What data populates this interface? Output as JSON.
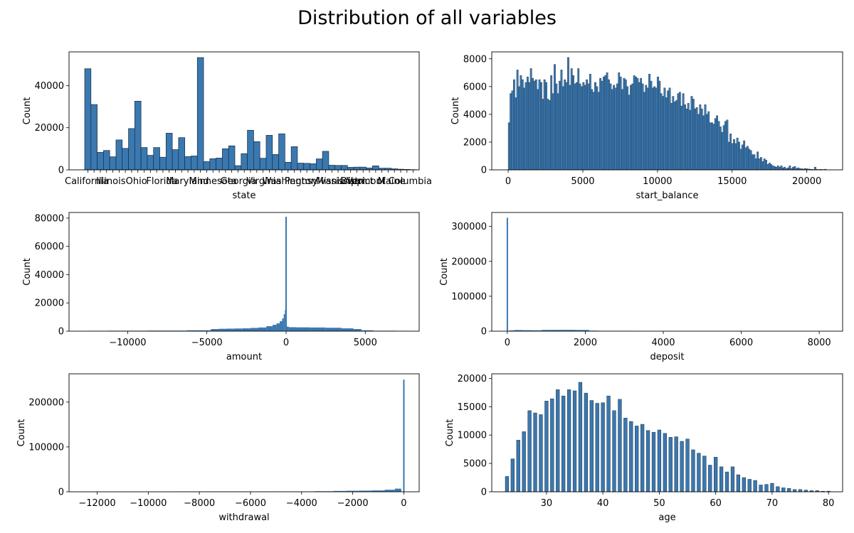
{
  "figure": {
    "title": "Distribution of all variables"
  },
  "chart_data": [
    {
      "type": "histogram",
      "xlabel": "state",
      "ylabel": "Count",
      "x_kind": "categorical",
      "ylim": [
        0,
        56000
      ],
      "yticks": [
        0,
        20000,
        40000
      ],
      "xtick_labels_visible": [
        "California",
        "Illinois",
        "Ohio",
        "Florida",
        "Maryland",
        "Minnesota",
        "Georgia",
        "Virginia",
        "Washington",
        "Pennsylvania",
        "Mississippi",
        "Vermont",
        "Maine",
        "District of Columbia"
      ],
      "values": [
        48000,
        31000,
        8300,
        9200,
        6200,
        14200,
        10200,
        19600,
        32600,
        10600,
        6900,
        10600,
        6000,
        17400,
        9600,
        15300,
        6300,
        6600,
        53300,
        3900,
        5300,
        5600,
        10000,
        11400,
        2000,
        7700,
        18800,
        13400,
        5500,
        16400,
        7300,
        17100,
        3600,
        11000,
        3200,
        3100,
        2900,
        5200,
        8800,
        2200,
        2100,
        2100,
        1200,
        1300,
        1300,
        900,
        1900,
        800,
        800,
        500,
        300,
        200,
        100
      ],
      "grid": false
    },
    {
      "type": "histogram",
      "xlabel": "start_balance",
      "ylabel": "Count",
      "xlim": [
        -1100,
        22400
      ],
      "ylim": [
        0,
        8500
      ],
      "xticks": [
        0,
        5000,
        10000,
        15000,
        20000
      ],
      "yticks": [
        0,
        2000,
        4000,
        6000,
        8000
      ],
      "bin_range": [
        0,
        21300
      ],
      "values": [
        3400,
        5500,
        5700,
        6500,
        5200,
        7200,
        6000,
        6800,
        6500,
        5900,
        6300,
        6700,
        6300,
        7300,
        6600,
        6400,
        6500,
        5800,
        6500,
        6300,
        5100,
        6500,
        6300,
        5100,
        5000,
        6800,
        5500,
        7600,
        6200,
        5500,
        6400,
        7200,
        6000,
        6500,
        6300,
        8100,
        6100,
        7300,
        6800,
        6200,
        6300,
        7300,
        6200,
        6000,
        6300,
        6100,
        6500,
        6200,
        6900,
        5800,
        5600,
        6300,
        6000,
        5600,
        6600,
        6400,
        6700,
        6800,
        7000,
        6500,
        6200,
        5800,
        6100,
        5900,
        6200,
        7000,
        6700,
        5800,
        6600,
        6500,
        6000,
        5400,
        6100,
        6200,
        6800,
        6700,
        6600,
        6300,
        6600,
        6200,
        5600,
        6100,
        5900,
        6900,
        6400,
        5900,
        6000,
        5900,
        6700,
        6400,
        5500,
        5300,
        5900,
        5200,
        5700,
        5900,
        4800,
        5300,
        4900,
        5000,
        5500,
        5600,
        4600,
        5500,
        4700,
        4400,
        4800,
        4300,
        5300,
        5100,
        4400,
        4500,
        4000,
        4700,
        4400,
        3900,
        4700,
        4000,
        4200,
        3400,
        3400,
        3300,
        3700,
        3900,
        3500,
        3100,
        2700,
        3200,
        3500,
        3600,
        2000,
        2600,
        1900,
        2200,
        1900,
        2300,
        2000,
        1500,
        1800,
        2100,
        1600,
        1700,
        1500,
        1400,
        1100,
        1100,
        800,
        1300,
        800,
        900,
        600,
        800,
        700,
        400,
        500,
        400,
        300,
        250,
        200,
        300,
        200,
        300,
        150,
        200,
        100,
        150,
        300,
        100,
        200,
        250,
        100,
        150,
        100,
        80,
        60,
        100,
        80,
        60,
        50,
        40,
        30,
        200,
        40,
        20,
        40,
        30,
        20,
        50
      ],
      "grid": false
    },
    {
      "type": "histogram",
      "xlabel": "amount",
      "ylabel": "Count",
      "xlim": [
        -13700,
        8400
      ],
      "ylim": [
        0,
        84000
      ],
      "xticks": [
        -10000,
        -5000,
        0,
        5000
      ],
      "yticks": [
        0,
        20000,
        40000,
        60000,
        80000
      ],
      "x": [
        -12500,
        -10000,
        -7500,
        -5000,
        -4500,
        -4000,
        -3500,
        -3000,
        -2500,
        -2000,
        -1500,
        -1000,
        -700,
        -500,
        -300,
        -200,
        -100,
        -50,
        0,
        50,
        300,
        1000,
        2000,
        3000,
        4000,
        4500,
        5000,
        6000,
        8000
      ],
      "y": [
        200,
        300,
        400,
        600,
        1500,
        1700,
        1800,
        1900,
        2000,
        2300,
        2600,
        3500,
        4500,
        5500,
        7000,
        9000,
        12000,
        15000,
        81000,
        3200,
        2800,
        2700,
        2600,
        2400,
        2000,
        1500,
        600,
        300,
        200
      ],
      "peak_at": 0,
      "peak_count": 81000,
      "grid": false
    },
    {
      "type": "histogram",
      "xlabel": "deposit",
      "ylabel": "Count",
      "xlim": [
        -400,
        8600
      ],
      "ylim": [
        0,
        340000
      ],
      "xticks": [
        0,
        2000,
        4000,
        6000,
        8000
      ],
      "yticks": [
        0,
        100000,
        200000,
        300000
      ],
      "x": [
        0,
        100,
        250,
        500,
        750,
        1000,
        1500,
        2000,
        2200,
        2500,
        4000,
        6000,
        8200
      ],
      "y": [
        325000,
        2000,
        3200,
        2800,
        2500,
        3600,
        3700,
        3400,
        1500,
        900,
        200,
        100,
        100
      ],
      "peak_at": 0,
      "peak_count": 325000,
      "grid": false
    },
    {
      "type": "histogram",
      "xlabel": "withdrawal",
      "ylabel": "Count",
      "xlim": [
        -13100,
        600
      ],
      "ylim": [
        0,
        263000
      ],
      "xticks": [
        -12000,
        -10000,
        -8000,
        -6000,
        -4000,
        -2000,
        0
      ],
      "yticks": [
        0,
        100000,
        200000
      ],
      "x": [
        -12800,
        -10000,
        -8000,
        -6000,
        -4000,
        -3000,
        -2500,
        -2000,
        -1500,
        -1000,
        -500,
        -200,
        0
      ],
      "y": [
        300,
        300,
        400,
        500,
        700,
        1200,
        1800,
        2200,
        2500,
        3000,
        4500,
        7000,
        250000
      ],
      "peak_at": 0,
      "peak_count": 250000,
      "grid": false
    },
    {
      "type": "histogram",
      "xlabel": "age",
      "ylabel": "Count",
      "xlim": [
        20.3,
        82.5
      ],
      "ylim": [
        0,
        20800
      ],
      "xticks": [
        30,
        40,
        50,
        60,
        70,
        80
      ],
      "yticks": [
        0,
        5000,
        10000,
        15000,
        20000
      ],
      "x": [
        23,
        24,
        25,
        26,
        27,
        28,
        29,
        30,
        31,
        32,
        33,
        34,
        35,
        36,
        37,
        38,
        39,
        40,
        41,
        42,
        43,
        44,
        45,
        46,
        47,
        48,
        49,
        50,
        51,
        52,
        53,
        54,
        55,
        56,
        57,
        58,
        59,
        60,
        61,
        62,
        63,
        64,
        65,
        66,
        67,
        68,
        69,
        70,
        71,
        72,
        73,
        74,
        75,
        76,
        77,
        78,
        79,
        80
      ],
      "y": [
        2700,
        5800,
        9100,
        10600,
        14300,
        13900,
        13600,
        16000,
        16400,
        18000,
        16900,
        18000,
        17800,
        19300,
        17400,
        16100,
        15600,
        15700,
        16900,
        14300,
        16300,
        13000,
        12400,
        11600,
        11900,
        10800,
        10500,
        10900,
        10300,
        9600,
        9700,
        8900,
        9300,
        7400,
        6800,
        6300,
        4700,
        6100,
        4400,
        3500,
        4400,
        3000,
        2500,
        2200,
        2000,
        1200,
        1300,
        1500,
        900,
        700,
        600,
        400,
        400,
        300,
        200,
        200,
        100,
        100
      ],
      "grid": false
    }
  ]
}
